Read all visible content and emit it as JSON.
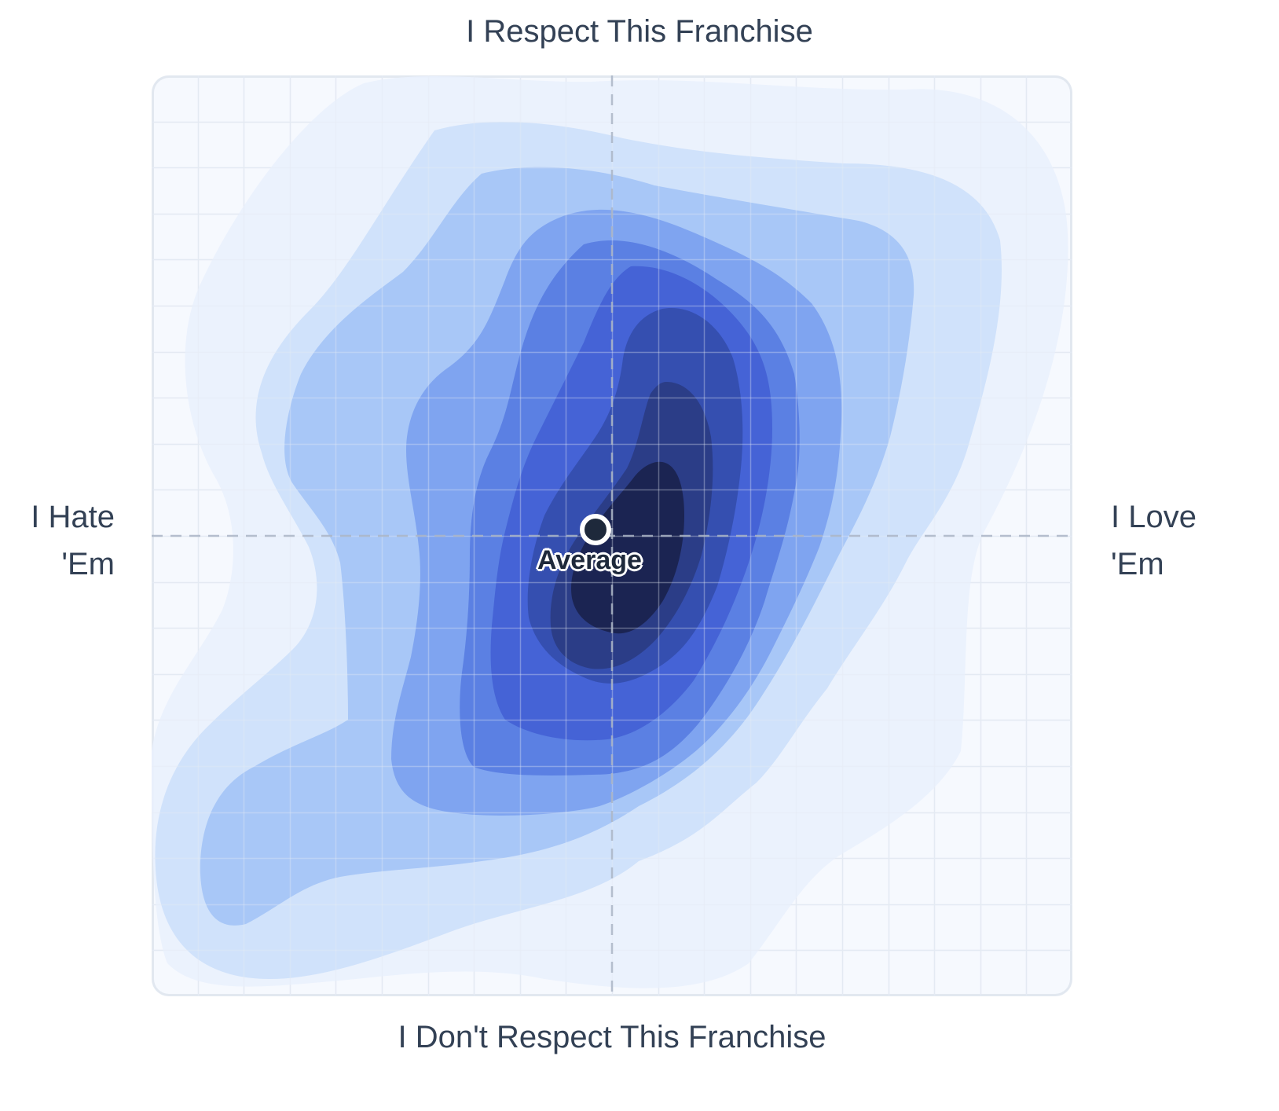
{
  "chart_data": {
    "type": "heatmap",
    "subtype": "2d-density-contour",
    "title": "",
    "labels": {
      "top": "I Respect This Franchise",
      "bottom": "I Don't Respect This Franchise",
      "left_line1": "I Hate",
      "left_line2": "'Em",
      "right_line1": "I Love",
      "right_line2": "'Em"
    },
    "xlabel": "I Hate 'Em ← → I Love 'Em",
    "ylabel": "I Don't Respect This Franchise ← → I Respect This Franchise",
    "xlim": [
      -1,
      1
    ],
    "ylim": [
      -1,
      1
    ],
    "grid": true,
    "grid_divisions": 20,
    "quadrant_lines": "dashed at x=0, y=0",
    "average_point": {
      "label": "Average",
      "x": -0.03,
      "y": 0.02
    },
    "density_levels": 9,
    "level_colors": [
      "#eaf1fd",
      "#d0e2fb",
      "#a8c7f7",
      "#7fa4f0",
      "#5b80e3",
      "#4563d6",
      "#354fb0",
      "#2b3d87",
      "#1b2452"
    ],
    "peak_density_location": {
      "x": 0.05,
      "y": -0.08
    },
    "notes": "Density concentrated slightly right of center, elongated vertically; secondary tail toward bottom-left (hate, don't respect)."
  },
  "average": {
    "label": "Average"
  },
  "colors": {
    "text": "#334155",
    "plot_bg": "#f6f9fe",
    "border": "#e2e8f0",
    "grid": "#e4eaf3",
    "dashed_axis": "#b6c0cf"
  }
}
